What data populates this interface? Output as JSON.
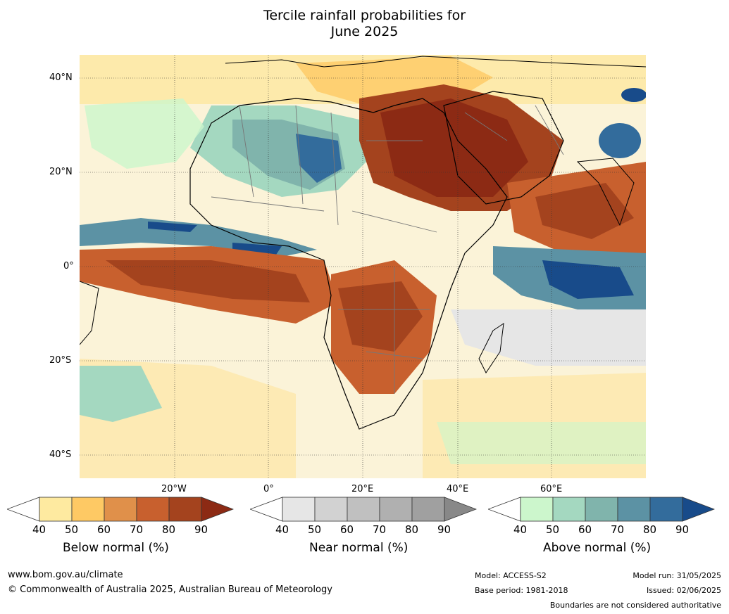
{
  "title_line1": "Tercile rainfall probabilities for",
  "title_line2": "June 2025",
  "lat_labels": [
    "40°N",
    "20°N",
    "0°",
    "20°S",
    "40°S"
  ],
  "lon_labels": [
    "20°W",
    "0°",
    "20°E",
    "40°E",
    "60°E"
  ],
  "legends": [
    {
      "title": "Below normal (%)",
      "ticks": [
        "40",
        "50",
        "60",
        "70",
        "80",
        "90"
      ],
      "colors": [
        "#ffffff",
        "#feeaa0",
        "#fec964",
        "#e0904a",
        "#c8602e",
        "#a4431e",
        "#8c2a14"
      ]
    },
    {
      "title": "Near normal (%)",
      "ticks": [
        "40",
        "50",
        "60",
        "70",
        "80",
        "90"
      ],
      "colors": [
        "#ffffff",
        "#e6e6e6",
        "#d2d2d2",
        "#c0c0c0",
        "#b0b0b0",
        "#a0a0a0",
        "#888888"
      ]
    },
    {
      "title": "Above normal (%)",
      "ticks": [
        "40",
        "50",
        "60",
        "70",
        "80",
        "90"
      ],
      "colors": [
        "#ffffff",
        "#ccf6cc",
        "#a4d8c0",
        "#80b4ac",
        "#5c92a4",
        "#336c9c",
        "#184b8a"
      ]
    }
  ],
  "footer": {
    "url": "www.bom.gov.au/climate",
    "copyright": "© Commonwealth of Australia 2025, Australian Bureau of Meteorology",
    "model": "Model: ACCESS-S2",
    "base_period": "Base period: 1981-2018",
    "model_run": "Model run: 31/05/2025",
    "issued": "Issued: 02/06/2025",
    "disclaimer": "Boundaries are not considered authoritative"
  }
}
